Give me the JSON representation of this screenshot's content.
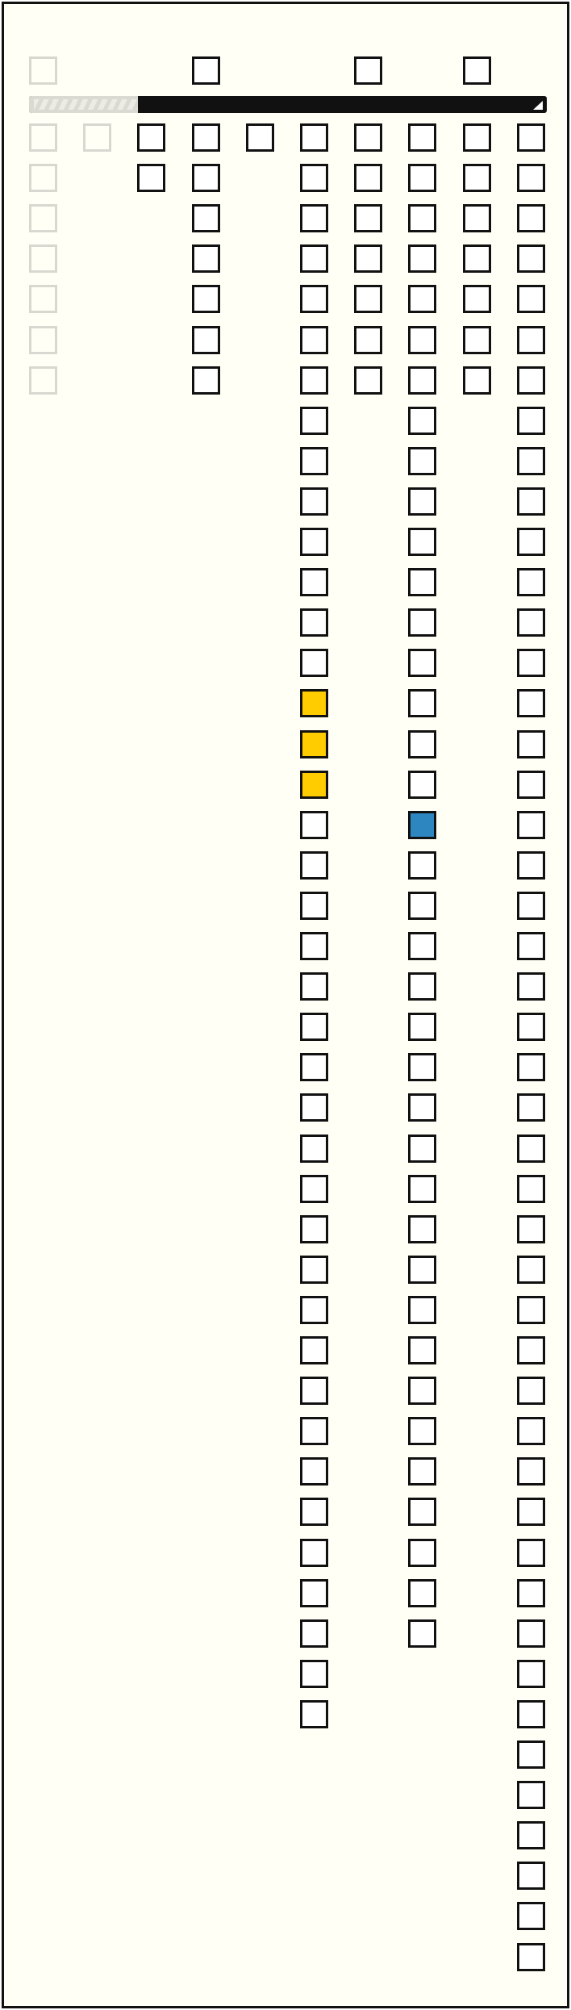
{
  "colors": {
    "background": "#fffff6",
    "border": "#111111",
    "dim_border": "#d8d8d0",
    "cell_fill": "#ffffff",
    "highlight_yellow": "#ffcc00",
    "highlight_blue": "#2e86c1",
    "bar_stripe": "#6e3b22"
  },
  "progress_bar": {
    "light_fraction": 0.21
  },
  "grid": {
    "columns": [
      {
        "top_cell": true,
        "rows": 7,
        "dim": true,
        "highlights": []
      },
      {
        "top_cell": false,
        "rows": 1,
        "dim": true,
        "highlights": []
      },
      {
        "top_cell": false,
        "rows": 2,
        "dim": false,
        "highlights": []
      },
      {
        "top_cell": true,
        "rows": 7,
        "dim": false,
        "highlights": []
      },
      {
        "top_cell": false,
        "rows": 1,
        "dim": false,
        "highlights": []
      },
      {
        "top_cell": false,
        "rows": 40,
        "dim": false,
        "highlights": [
          {
            "row": 14,
            "color": "yellow"
          },
          {
            "row": 15,
            "color": "yellow"
          },
          {
            "row": 16,
            "color": "yellow"
          }
        ]
      },
      {
        "top_cell": true,
        "rows": 7,
        "dim": false,
        "highlights": []
      },
      {
        "top_cell": false,
        "rows": 38,
        "dim": false,
        "highlights": [
          {
            "row": 17,
            "color": "blue"
          }
        ]
      },
      {
        "top_cell": true,
        "rows": 7,
        "dim": false,
        "highlights": []
      },
      {
        "top_cell": false,
        "rows": 46,
        "dim": false,
        "highlights": []
      }
    ]
  }
}
